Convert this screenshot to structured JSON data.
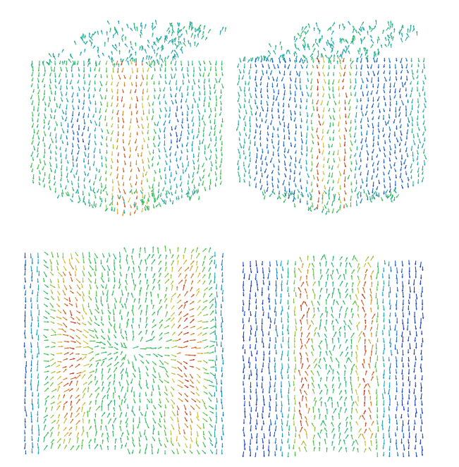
{
  "figure": {
    "panels": [
      {
        "id": "cube-view-1",
        "kind": "3d-cube-vector-field"
      },
      {
        "id": "cube-view-2",
        "kind": "3d-cube-vector-field"
      },
      {
        "id": "cross-section-1",
        "kind": "2d-vector-field-slice"
      },
      {
        "id": "cross-section-2",
        "kind": "2d-vector-field-slice"
      }
    ],
    "colormap": {
      "low": "#1f3fbf",
      "mid_low": "#1fa3c8",
      "mid": "#3cc14a",
      "mid_high": "#d8c23a",
      "high": "#c8281e"
    }
  }
}
